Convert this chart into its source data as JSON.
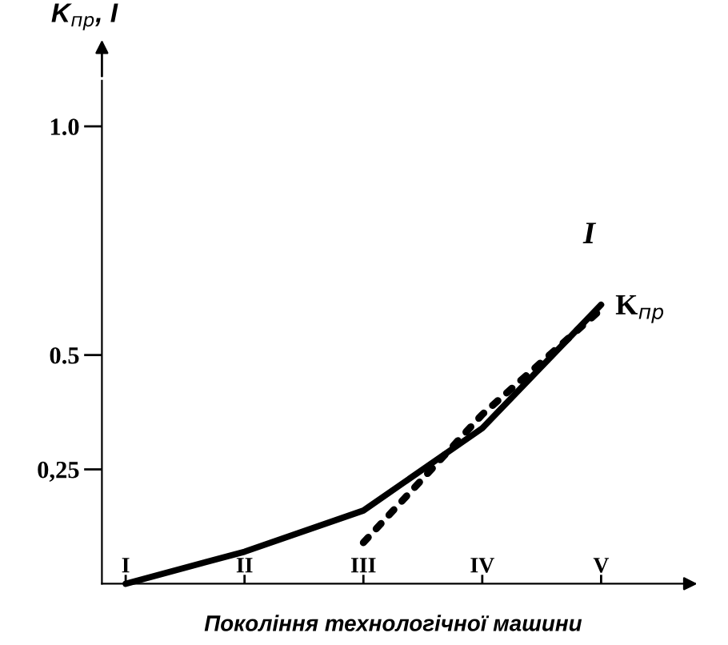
{
  "chart_data": {
    "type": "line",
    "xlabel": "Покоління технологічної машини",
    "ylabel": "K$_{пр}$, I",
    "categories": [
      "I",
      "II",
      "III",
      "IV",
      "V"
    ],
    "ylim": [
      0,
      1.1
    ],
    "yticks": [
      {
        "value": 0.25,
        "label": "0,25"
      },
      {
        "value": 0.5,
        "label": "0.5"
      },
      {
        "value": 1.0,
        "label": "1.0"
      }
    ],
    "series": [
      {
        "name": "I",
        "color": "#000000",
        "line_style": "solid",
        "values": [
          0,
          0.07,
          0.16,
          0.34,
          0.61
        ]
      },
      {
        "name": "K$_{пр}$",
        "color": "#000000",
        "line_style": "dotted",
        "values": [
          null,
          null,
          0.09,
          0.37,
          0.6
        ]
      }
    ]
  }
}
